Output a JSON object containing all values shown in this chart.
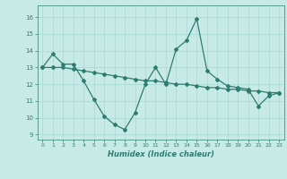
{
  "xlabel": "Humidex (Indice chaleur)",
  "background_color": "#c8eae6",
  "line_color": "#2d7d6e",
  "grid_color": "#a8d8d2",
  "xlim": [
    -0.5,
    23.5
  ],
  "ylim": [
    8.7,
    16.7
  ],
  "yticks": [
    9,
    10,
    11,
    12,
    13,
    14,
    15,
    16
  ],
  "xticks": [
    0,
    1,
    2,
    3,
    4,
    5,
    6,
    7,
    8,
    9,
    10,
    11,
    12,
    13,
    14,
    15,
    16,
    17,
    18,
    19,
    20,
    21,
    22,
    23
  ],
  "series1_x": [
    0,
    1,
    2,
    3,
    4,
    5,
    6,
    7,
    8,
    9,
    10,
    11,
    12,
    13,
    14,
    15,
    16,
    17,
    18,
    19,
    20,
    21,
    22,
    23
  ],
  "series1_y": [
    13.0,
    13.8,
    13.2,
    13.2,
    12.2,
    11.1,
    10.1,
    9.6,
    9.3,
    10.3,
    12.0,
    13.0,
    12.0,
    14.1,
    14.6,
    15.9,
    12.8,
    12.3,
    11.9,
    11.8,
    11.7,
    10.7,
    11.3,
    11.5
  ],
  "series2_x": [
    0,
    1,
    2,
    3,
    4,
    5,
    6,
    7,
    8,
    9,
    10,
    11,
    12,
    13,
    14,
    15,
    16,
    17,
    18,
    19,
    20,
    21,
    22,
    23
  ],
  "series2_y": [
    13.0,
    13.0,
    13.0,
    12.9,
    12.8,
    12.7,
    12.6,
    12.5,
    12.4,
    12.3,
    12.2,
    12.2,
    12.1,
    12.0,
    12.0,
    11.9,
    11.8,
    11.8,
    11.7,
    11.7,
    11.6,
    11.6,
    11.5,
    11.5
  ]
}
